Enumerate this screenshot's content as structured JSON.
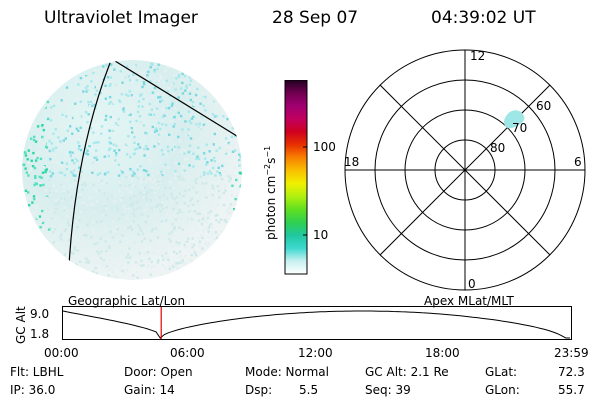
{
  "header": {
    "title": "Ultraviolet Imager",
    "date": "28 Sep 07",
    "time": "04:39:02 UT"
  },
  "colorbar": {
    "unit_prefix": "photon cm",
    "unit_exp1": "−2",
    "unit_mid": "s",
    "unit_exp2": "−1",
    "ticks": [
      "100",
      "10"
    ],
    "stops": [
      "#ffffff",
      "#c8f0f0",
      "#3ed8d0",
      "#20c8a0",
      "#30d050",
      "#60e020",
      "#b0f010",
      "#f0f000",
      "#f8c000",
      "#f88000",
      "#e83000",
      "#d00020",
      "#c00060",
      "#a00070",
      "#700050",
      "#200020"
    ]
  },
  "polar": {
    "mlt_labels": {
      "top": "12",
      "bottom": "0",
      "left": "18",
      "right": "6"
    },
    "lat_labels": [
      "60",
      "70",
      "80"
    ]
  },
  "captions": {
    "left": "Geographic Lat/Lon",
    "right": "Apex MLat/MLT"
  },
  "altitude_plot": {
    "ylabel": "GC Alt",
    "yticks": [
      "9.0",
      "1.8"
    ],
    "xticks": [
      "00:00",
      "06:00",
      "12:00",
      "18:00",
      "23:59"
    ],
    "current_time_hours": 4.65
  },
  "status": {
    "flt": "Flt: LBHL",
    "ip": "IP: 36.0",
    "door": "Door: Open",
    "gain": "Gain: 14",
    "mode": "Mode: Normal",
    "dsp_label": "Dsp:",
    "dsp_value": "5.5",
    "gcalt": "GC Alt: 2.1 Re",
    "seq": "Seq: 39",
    "glat_label": "GLat:",
    "glat_value": "72.3",
    "glon_label": "GLon:",
    "glon_value": "55.7"
  },
  "colors": {
    "marker": "#e00000",
    "line": "#000000"
  }
}
